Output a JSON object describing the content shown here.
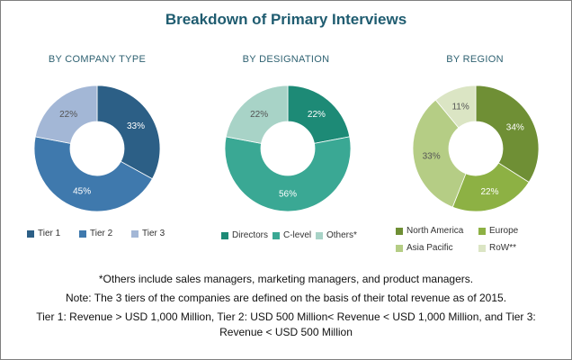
{
  "title": "Breakdown of Primary Interviews",
  "chart_data": [
    {
      "type": "pie",
      "title": "BY COMPANY TYPE",
      "categories": [
        "Tier 1",
        "Tier 2",
        "Tier 3"
      ],
      "values": [
        33,
        45,
        22
      ],
      "labels": [
        "33%",
        "45%",
        "22%"
      ],
      "colors": [
        "#2c5f86",
        "#3f79ad",
        "#a3b7d6"
      ],
      "label_colors": [
        "#ffffff",
        "#ffffff",
        "#555555"
      ],
      "legend": [
        "Tier 1",
        "Tier 2",
        "Tier 3"
      ],
      "legend_position": "bottom"
    },
    {
      "type": "pie",
      "title": "BY DESIGNATION",
      "categories": [
        "Directors",
        "C-level",
        "Others*"
      ],
      "values": [
        22,
        56,
        22
      ],
      "labels": [
        "22%",
        "56%",
        "22%"
      ],
      "colors": [
        "#1d8a76",
        "#3aa894",
        "#a8d3c7"
      ],
      "label_colors": [
        "#ffffff",
        "#ffffff",
        "#555555"
      ],
      "legend": [
        "Directors",
        "C-level",
        "Others*"
      ],
      "legend_position": "bottom"
    },
    {
      "type": "pie",
      "title": "BY REGION",
      "categories": [
        "North America",
        "Europe",
        "Asia Pacific",
        "RoW**"
      ],
      "values": [
        34,
        22,
        33,
        11
      ],
      "labels": [
        "34%",
        "22%",
        "33%",
        "11%"
      ],
      "colors": [
        "#6f8f35",
        "#8db144",
        "#b5cd85",
        "#dbe5c4"
      ],
      "label_colors": [
        "#ffffff",
        "#ffffff",
        "#555555",
        "#555555"
      ],
      "legend": [
        "North America",
        "Europe",
        "Asia Pacific",
        "RoW**"
      ],
      "legend_position": "bottom"
    }
  ],
  "notes": {
    "others": "*Others include sales managers, marketing managers, and product managers.",
    "tiers_basis": "Note: The 3 tiers of the companies are defined on the basis of their total revenue as of 2015.",
    "tiers_def_1": "Tier 1: Revenue > USD 1,000 Million, Tier 2: USD 500 Million< Revenue < USD 1,000 Million, and Tier 3:",
    "tiers_def_2": "Revenue < USD 500 Million"
  }
}
